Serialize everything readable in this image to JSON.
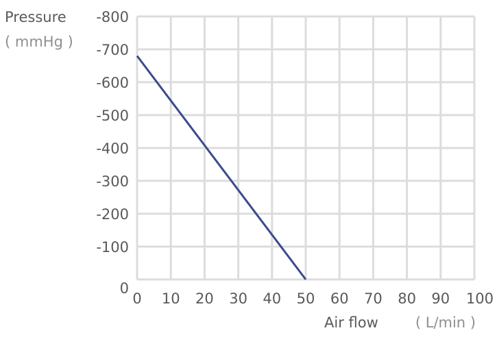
{
  "chart_data": {
    "type": "line",
    "ylabel": "Pressure",
    "ylabel_unit": "( mmHg )",
    "xlabel": "Air flow",
    "xlabel_unit": "( L/min )",
    "x_ticks": [
      "0",
      "10",
      "20",
      "30",
      "40",
      "50",
      "60",
      "70",
      "80",
      "90",
      "100"
    ],
    "y_ticks": [
      "0",
      "-100",
      "-200",
      "-300",
      "-400",
      "-500",
      "-600",
      "-700",
      "-800"
    ],
    "xlim": [
      0,
      100
    ],
    "ylim": [
      0,
      -800
    ],
    "grid": true,
    "series": [
      {
        "x": [
          0,
          50
        ],
        "y": [
          -680,
          0
        ],
        "color": "#3a4a8c"
      }
    ]
  },
  "colors": {
    "grid": "#dcdcdc",
    "tick_text": "#595959",
    "axis_title_text": "#595959",
    "unit_text": "#8f8f8f"
  }
}
